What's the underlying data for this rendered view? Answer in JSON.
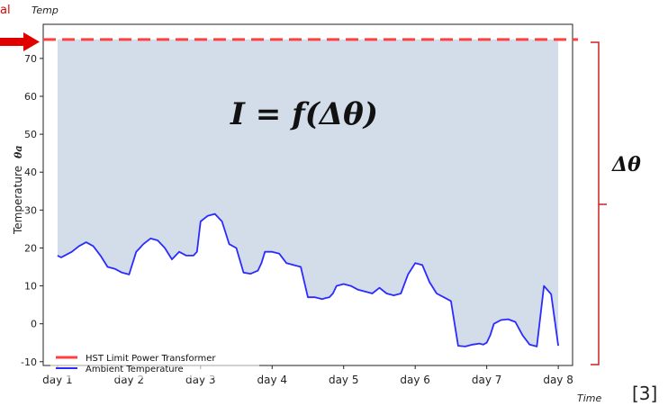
{
  "corner_note": "al",
  "citation": "[3]",
  "formula": "I = f(Δθ)",
  "delta_label": "Δθ",
  "chart_data": {
    "type": "line",
    "xlabel": "Time",
    "ylabel": "Temperature",
    "ylabel_symbol": "θa",
    "top_label": "Temp",
    "categories": [
      "day 1",
      "day 2",
      "day 3",
      "day 4",
      "day 5",
      "day 6",
      "day 7",
      "day 8"
    ],
    "xlim": [
      0.8,
      8.2
    ],
    "ylim": [
      -11,
      79
    ],
    "yticks": [
      -10,
      0,
      10,
      20,
      30,
      40,
      50,
      60,
      70
    ],
    "grid": false,
    "legend_position": "bottom-left",
    "fill_between": "ambient to limit",
    "series": [
      {
        "name": "HST Limit Power Transformer",
        "style": "dashed",
        "color": "#ff4040",
        "x": [
          0.8,
          8.2
        ],
        "y": [
          75,
          75
        ]
      },
      {
        "name": "Ambient Temperature",
        "style": "solid",
        "color": "#2b2bff",
        "x": [
          1.0,
          1.05,
          1.1,
          1.2,
          1.3,
          1.4,
          1.5,
          1.6,
          1.7,
          1.8,
          1.9,
          2.0,
          2.1,
          2.15,
          2.2,
          2.3,
          2.4,
          2.5,
          2.6,
          2.7,
          2.8,
          2.9,
          2.95,
          3.0,
          3.1,
          3.2,
          3.3,
          3.4,
          3.5,
          3.6,
          3.7,
          3.8,
          3.85,
          3.9,
          4.0,
          4.1,
          4.2,
          4.3,
          4.4,
          4.5,
          4.6,
          4.7,
          4.75,
          4.8,
          4.85,
          4.9,
          5.0,
          5.1,
          5.2,
          5.3,
          5.4,
          5.5,
          5.6,
          5.7,
          5.8,
          5.9,
          6.0,
          6.1,
          6.2,
          6.3,
          6.4,
          6.5,
          6.6,
          6.7,
          6.8,
          6.9,
          6.95,
          7.0,
          7.05,
          7.1,
          7.2,
          7.3,
          7.4,
          7.5,
          7.6,
          7.7,
          7.8,
          7.9,
          8.0
        ],
        "y": [
          18,
          17.5,
          18,
          19,
          20.5,
          21.5,
          20.5,
          18,
          15,
          14.5,
          13.5,
          13,
          19,
          20,
          21,
          22.5,
          22,
          20,
          17,
          19,
          18,
          18,
          19,
          27,
          28.5,
          29,
          27,
          21,
          20,
          13.5,
          13.2,
          14,
          16,
          19,
          19,
          18.5,
          16,
          15.5,
          15,
          7,
          7,
          6.5,
          6.8,
          7,
          8,
          10,
          10.5,
          10,
          9,
          8.5,
          8,
          9.5,
          8,
          7.5,
          8,
          13,
          16,
          15.5,
          11,
          8,
          7,
          6,
          -5.8,
          -6,
          -5.5,
          -5.2,
          -5.5,
          -5,
          -3,
          0,
          1,
          1.2,
          0.5,
          -3,
          -5.5,
          -6,
          10,
          7.8,
          -5.8
        ]
      }
    ]
  }
}
